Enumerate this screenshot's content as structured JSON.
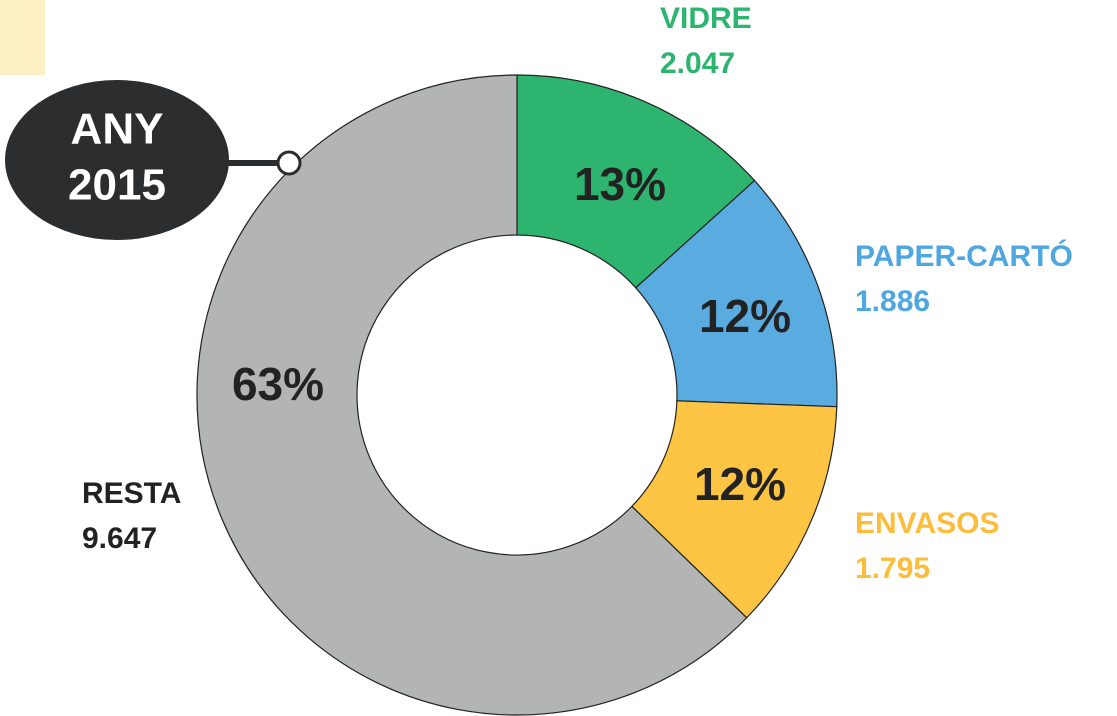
{
  "chart_data": {
    "type": "donut",
    "categories": [
      "VIDRE",
      "PAPER-CARTÓ",
      "ENVASOS",
      "RESTA"
    ],
    "values": [
      2047,
      1886,
      1795,
      9647
    ],
    "value_labels": [
      "2.047",
      "1.886",
      "1.795",
      "9.647"
    ],
    "percentages": [
      13,
      12,
      12,
      63
    ],
    "percentage_labels": [
      "13%",
      "12%",
      "12%",
      "63%"
    ],
    "colors": [
      "#2db56f",
      "#5aace0",
      "#fdc543",
      "#b3b5b5"
    ],
    "label_colors": [
      "#2db56f",
      "#4ea7e0",
      "#fbbd3b",
      "#222222"
    ],
    "annotation": [
      "ANY",
      "2015"
    ]
  }
}
